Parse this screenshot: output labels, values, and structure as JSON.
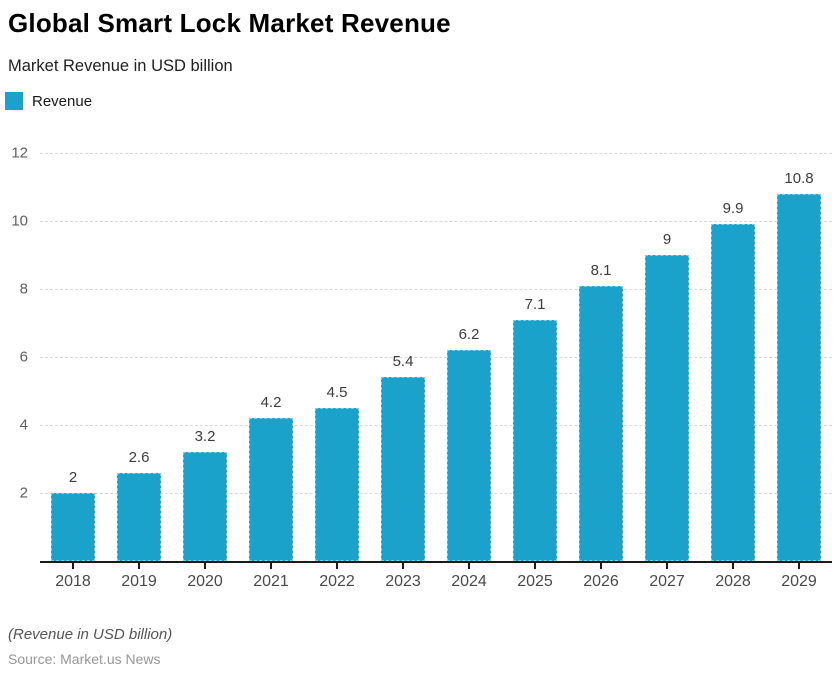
{
  "header": {
    "title": "Global Smart Lock Market Revenue",
    "subtitle": "Market Revenue in USD billion"
  },
  "legend": {
    "label": "Revenue",
    "swatch_color": "#1BA2CB"
  },
  "footer": {
    "note": "(Revenue in USD billion)",
    "source": "Source: Market.us News"
  },
  "chart_data": {
    "type": "bar",
    "title": "Global Smart Lock Market Revenue",
    "subtitle": "Market Revenue in USD billion",
    "series_name": "Revenue",
    "categories": [
      "2018",
      "2019",
      "2020",
      "2021",
      "2022",
      "2023",
      "2024",
      "2025",
      "2026",
      "2027",
      "2028",
      "2029"
    ],
    "values": [
      2,
      2.6,
      3.2,
      4.2,
      4.5,
      5.4,
      6.2,
      7.1,
      8.1,
      9,
      9.9,
      10.8
    ],
    "xlabel": "",
    "ylabel": "",
    "ylim": [
      0,
      12
    ],
    "yticks": [
      2,
      4,
      6,
      8,
      10,
      12
    ],
    "grid": true,
    "gridline_style": "dashed",
    "bar_color": "#1BA2CB",
    "legend_position": "top-left",
    "axis_line_color": "#1a1a1a",
    "value_labels_shown": true
  }
}
